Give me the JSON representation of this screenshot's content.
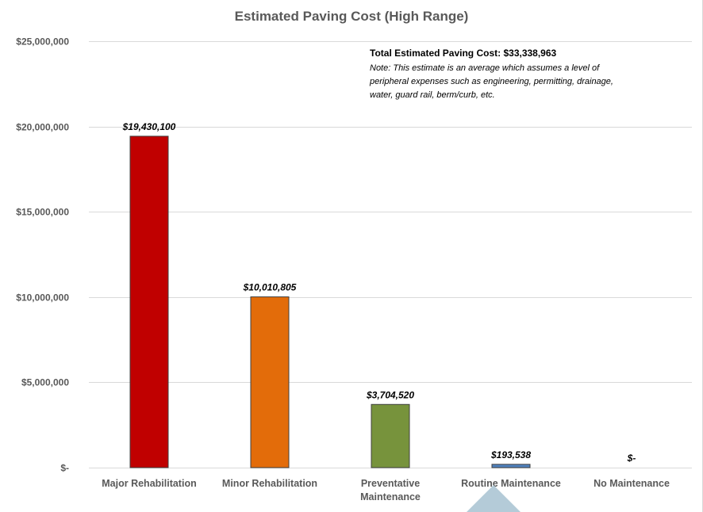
{
  "chart_data": {
    "type": "bar",
    "title": "Estimated Paving Cost (High Range)",
    "xlabel": "",
    "ylabel": "",
    "ylim": [
      0,
      25000000
    ],
    "yticks": [
      0,
      5000000,
      10000000,
      15000000,
      20000000,
      25000000
    ],
    "ytick_labels": [
      "$-",
      "$5,000,000",
      "$10,000,000",
      "$15,000,000",
      "$20,000,000",
      "$25,000,000"
    ],
    "grid": true,
    "legend": "none",
    "categories": [
      "Major Rehabilitation",
      "Minor Rehabilitation",
      "Preventative Maintenance",
      "Routine Maintenance",
      "No Maintenance"
    ],
    "category_lines": [
      [
        "Major Rehabilitation"
      ],
      [
        "Minor Rehabilitation"
      ],
      [
        "Preventative",
        "Maintenance"
      ],
      [
        "Routine Maintenance"
      ],
      [
        "No Maintenance"
      ]
    ],
    "values": [
      19430100,
      10010805,
      3704520,
      193538,
      0
    ],
    "data_labels": [
      "$19,430,100",
      "$10,010,805",
      "$3,704,520",
      "$193,538",
      "$-"
    ],
    "colors": [
      "#c00000",
      "#e36c0a",
      "#77933c",
      "#4f81bd",
      "#7f7f7f"
    ],
    "annotation": {
      "title": "Total Estimated Paving Cost: $33,338,963",
      "lines": [
        "Note: This estimate is an average which assumes a level of",
        "peripheral expenses such as engineering, permitting, drainage,",
        "water, guard rail, berm/curb, etc."
      ]
    }
  }
}
